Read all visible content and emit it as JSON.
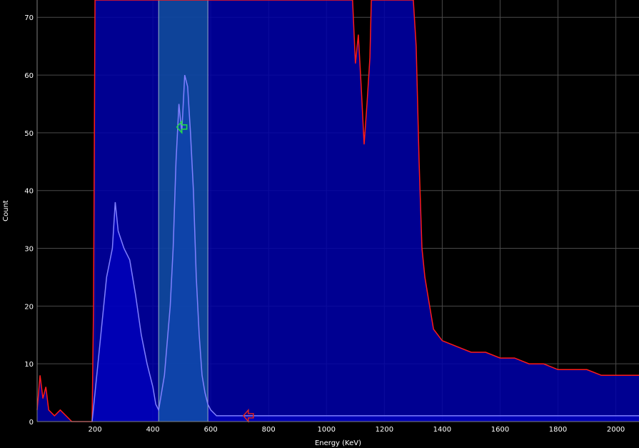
{
  "chart_data": {
    "type": "area",
    "xlabel": "Energy (KeV)",
    "ylabel": "Count",
    "xlim": [
      0,
      2080
    ],
    "ylim": [
      0,
      73
    ],
    "x_ticks": [
      "200",
      "400",
      "600",
      "800",
      "1000",
      "1200",
      "1400",
      "1600",
      "1800",
      "2000"
    ],
    "x_tick_values": [
      200,
      400,
      600,
      800,
      1000,
      1200,
      1400,
      1600,
      1800,
      2000
    ],
    "y_ticks": [
      "0",
      "10",
      "20",
      "30",
      "40",
      "50",
      "60",
      "70"
    ],
    "y_tick_values": [
      0,
      10,
      20,
      30,
      40,
      50,
      60,
      70
    ],
    "grid": true,
    "region_of_interest": {
      "x_start": 420,
      "x_end": 590
    },
    "series": [
      {
        "color": "#ff1a1a",
        "fill": "#0000aa",
        "points": [
          [
            0,
            2
          ],
          [
            10,
            8
          ],
          [
            20,
            4
          ],
          [
            30,
            6
          ],
          [
            40,
            2
          ],
          [
            60,
            1
          ],
          [
            80,
            2
          ],
          [
            100,
            1
          ],
          [
            120,
            0
          ],
          [
            190,
            0
          ],
          [
            195,
            20
          ],
          [
            200,
            73
          ],
          [
            1090,
            73
          ],
          [
            1100,
            62
          ],
          [
            1110,
            67
          ],
          [
            1120,
            58
          ],
          [
            1130,
            48
          ],
          [
            1140,
            55
          ],
          [
            1150,
            63
          ],
          [
            1155,
            73
          ],
          [
            1300,
            73
          ],
          [
            1310,
            65
          ],
          [
            1320,
            45
          ],
          [
            1330,
            30
          ],
          [
            1340,
            25
          ],
          [
            1350,
            22
          ],
          [
            1370,
            16
          ],
          [
            1400,
            14
          ],
          [
            1450,
            13
          ],
          [
            1500,
            12
          ],
          [
            1550,
            12
          ],
          [
            1600,
            11
          ],
          [
            1650,
            11
          ],
          [
            1700,
            10
          ],
          [
            1750,
            10
          ],
          [
            1800,
            9
          ],
          [
            1850,
            9
          ],
          [
            1900,
            9
          ],
          [
            1950,
            8
          ],
          [
            2000,
            8
          ],
          [
            2050,
            8
          ],
          [
            2080,
            8
          ]
        ]
      },
      {
        "color": "#8080ff",
        "fill": "#0000cc",
        "points": [
          [
            190,
            0
          ],
          [
            200,
            5
          ],
          [
            220,
            15
          ],
          [
            240,
            25
          ],
          [
            260,
            30
          ],
          [
            270,
            38
          ],
          [
            280,
            33
          ],
          [
            300,
            30
          ],
          [
            320,
            28
          ],
          [
            340,
            22
          ],
          [
            360,
            15
          ],
          [
            380,
            10
          ],
          [
            400,
            6
          ],
          [
            410,
            3
          ],
          [
            420,
            2
          ],
          [
            440,
            8
          ],
          [
            460,
            20
          ],
          [
            470,
            30
          ],
          [
            480,
            45
          ],
          [
            490,
            55
          ],
          [
            500,
            50
          ],
          [
            510,
            60
          ],
          [
            520,
            58
          ],
          [
            530,
            50
          ],
          [
            540,
            40
          ],
          [
            550,
            25
          ],
          [
            560,
            15
          ],
          [
            570,
            8
          ],
          [
            580,
            5
          ],
          [
            590,
            3
          ],
          [
            600,
            2
          ],
          [
            620,
            1
          ],
          [
            700,
            1
          ],
          [
            800,
            1
          ],
          [
            900,
            1
          ],
          [
            1000,
            1
          ],
          [
            1100,
            1
          ],
          [
            1200,
            1
          ],
          [
            1300,
            1
          ],
          [
            1400,
            1
          ],
          [
            1500,
            1
          ],
          [
            1600,
            1
          ],
          [
            1700,
            1
          ],
          [
            1800,
            1
          ],
          [
            1900,
            1
          ],
          [
            2000,
            1
          ],
          [
            2080,
            1
          ]
        ]
      }
    ],
    "markers": [
      {
        "symbol": "green-arrow-icon",
        "x": 500,
        "y": 51,
        "color": "#22dd44"
      },
      {
        "symbol": "red-arrow-icon",
        "x": 730,
        "y": 1,
        "color": "#dd2222"
      }
    ]
  }
}
